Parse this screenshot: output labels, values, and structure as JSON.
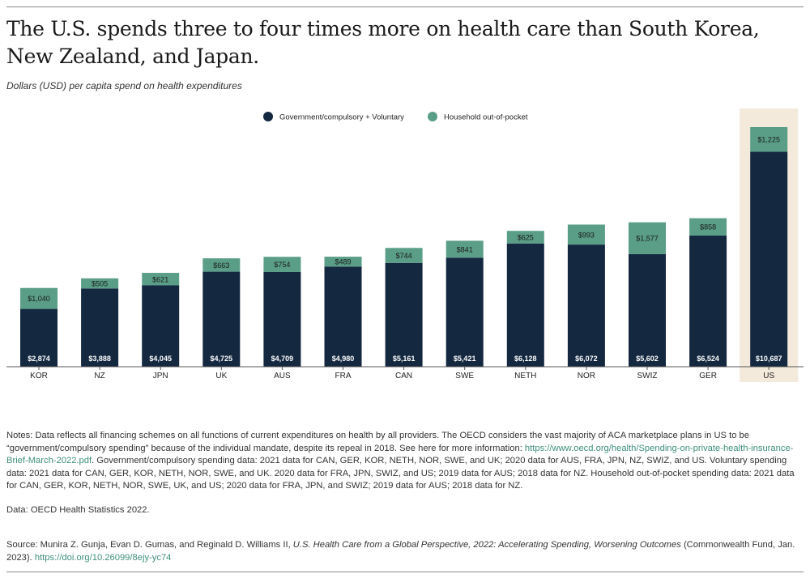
{
  "title": "The U.S. spends three to four times more on health care than South Korea, New Zealand, and Japan.",
  "subtitle": "Dollars (USD) per capita spend on health expenditures",
  "colors": {
    "government": "#142840",
    "household": "#5a9e88",
    "highlight_band": "#f4eadb",
    "link": "#3e8f7b"
  },
  "chart_data": {
    "type": "bar",
    "stacked": true,
    "categories": [
      "KOR",
      "NZ",
      "JPN",
      "UK",
      "AUS",
      "FRA",
      "CAN",
      "SWE",
      "NETH",
      "NOR",
      "SWIZ",
      "GER",
      "US"
    ],
    "series": [
      {
        "name": "Government/compulsory + Voluntary",
        "values": [
          2874,
          3888,
          4045,
          4725,
          4709,
          4980,
          5161,
          5421,
          6128,
          6072,
          5602,
          6524,
          10687
        ],
        "labels": [
          "$2,874",
          "$3,888",
          "$4,045",
          "$4,725",
          "$4,709",
          "$4,980",
          "$5,161",
          "$5,421",
          "$6,128",
          "$6,072",
          "$5,602",
          "$6,524",
          "$10,687"
        ]
      },
      {
        "name": "Household out-of-pocket",
        "values": [
          1040,
          505,
          621,
          663,
          754,
          489,
          744,
          841,
          625,
          993,
          1577,
          858,
          1225
        ],
        "labels": [
          "$1,040",
          "$505",
          "$621",
          "$663",
          "$754",
          "$489",
          "$744",
          "$841",
          "$625",
          "$993",
          "$1,577",
          "$858",
          "$1,225"
        ]
      }
    ],
    "highlight_category": "US",
    "legend_position": "top-center",
    "grid": false
  },
  "notes": {
    "main_text": "Notes: Data reflects all financing schemes on all functions of current expenditures on health by all providers. The OECD considers the vast majority of ACA marketplace plans in US to be “government/compulsory spending” because of the individual mandate, despite its repeal in 2018. See here for more information:",
    "main_link": "https://www.oecd.org/health/Spending-on-private-health-insurance-Brief-March-2022.pdf",
    "main_text_2": ". Government/compulsory spending data: 2021 data for CAN, GER, KOR, NETH, NOR, SWE, and UK; 2020 data for AUS, FRA, JPN, NZ, SWIZ, and US. Voluntary spending data: 2021 data for CAN, GER, KOR, NETH, NOR, SWE, and UK. 2020 data for FRA, JPN, SWIZ, and US; 2019 data for AUS; 2018 data for NZ. Household out-of-pocket spending data: 2021 data for CAN, GER, KOR, NETH, NOR, SWE, UK, and US; 2020 data for FRA, JPN, and SWIZ; 2019 data for AUS; 2018 data for NZ.",
    "data_line": "Data: OECD Health Statistics 2022.",
    "source_prefix": "Source: Munira Z. Gunja, Evan D. Gumas, and Reginald D. Williams II,",
    "source_title": "U.S. Health Care from a Global Perspective, 2022: Accelerating Spending, Worsening Outcomes",
    "source_suffix": "(Commonwealth Fund, Jan. 2023).",
    "source_link": "https://doi.org/10.26099/8ejy-yc74"
  }
}
